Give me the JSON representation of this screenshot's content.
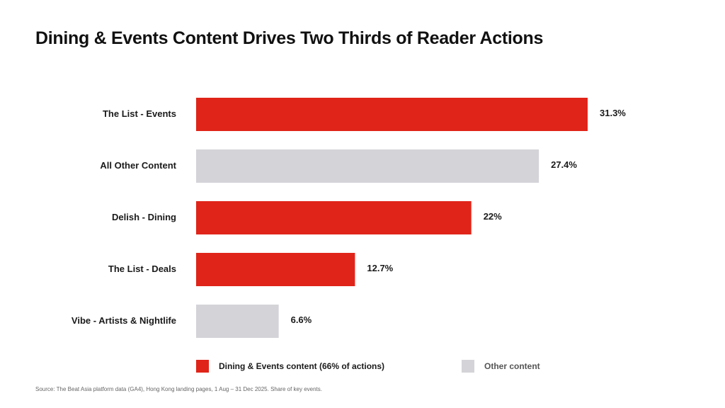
{
  "title": "Dining & Events Content Drives Two Thirds of Reader Actions",
  "colors": {
    "highlight": "#e02419",
    "other": "#d3d3d8"
  },
  "legend": {
    "highlight_label": "Dining & Events content (66% of actions)",
    "other_label": "Other content"
  },
  "source": "Source: The Beat Asia platform data (GA4), Hong Kong landing pages, 1 Aug – 31 Dec 2025. Share of key events.",
  "chart_data": {
    "type": "bar",
    "orientation": "horizontal",
    "title": "Dining & Events Content Drives Two Thirds of Reader Actions",
    "categories": [
      "The List - Events",
      "All Other Content",
      "Delish - Dining",
      "The List - Deals",
      "Vibe - Artists & Nightlife"
    ],
    "values": [
      31.3,
      27.4,
      22,
      12.7,
      6.6
    ],
    "value_labels": [
      "31.3%",
      "27.4%",
      "22%",
      "12.7%",
      "6.6%"
    ],
    "groups": [
      "highlight",
      "other",
      "highlight",
      "highlight",
      "other"
    ],
    "xlim": [
      0,
      31.3
    ],
    "grid": false,
    "legend_position": "bottom"
  }
}
